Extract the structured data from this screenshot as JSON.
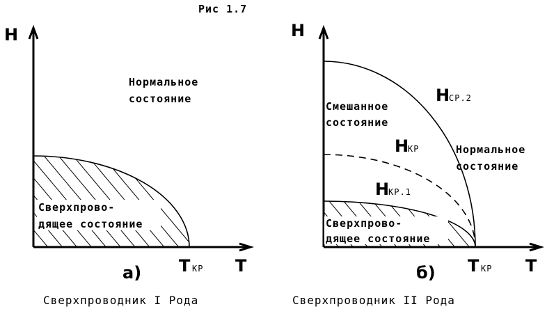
{
  "figure_title": "Рис 1.7",
  "panels": [
    {
      "y_axis": "H",
      "x_axis": "T",
      "label": "а)",
      "caption": "Сверхпроводник I Рода",
      "critical_temp": {
        "symbol": "T",
        "subscript": "КР"
      },
      "regions": [
        {
          "lines": [
            "Нормальное",
            "состояние"
          ]
        },
        {
          "lines": [
            "Сверхпрово-",
            "дящее состояние"
          ]
        }
      ]
    },
    {
      "y_axis": "H",
      "x_axis": "T",
      "label": "б)",
      "caption": "Сверхпроводник II Рода",
      "critical_temp": {
        "symbol": "T",
        "subscript": "КР"
      },
      "curves": [
        {
          "symbol": "H",
          "subscript": "СР.2"
        },
        {
          "symbol": "H",
          "subscript": "КР"
        },
        {
          "symbol": "H",
          "subscript": "КР.1"
        }
      ],
      "regions": [
        {
          "lines": [
            "Смешанное",
            "состояние"
          ]
        },
        {
          "lines": [
            "Нормальное",
            "состояние"
          ]
        },
        {
          "lines": [
            "Сверхпрово-",
            "дящее состояние"
          ]
        }
      ]
    }
  ]
}
